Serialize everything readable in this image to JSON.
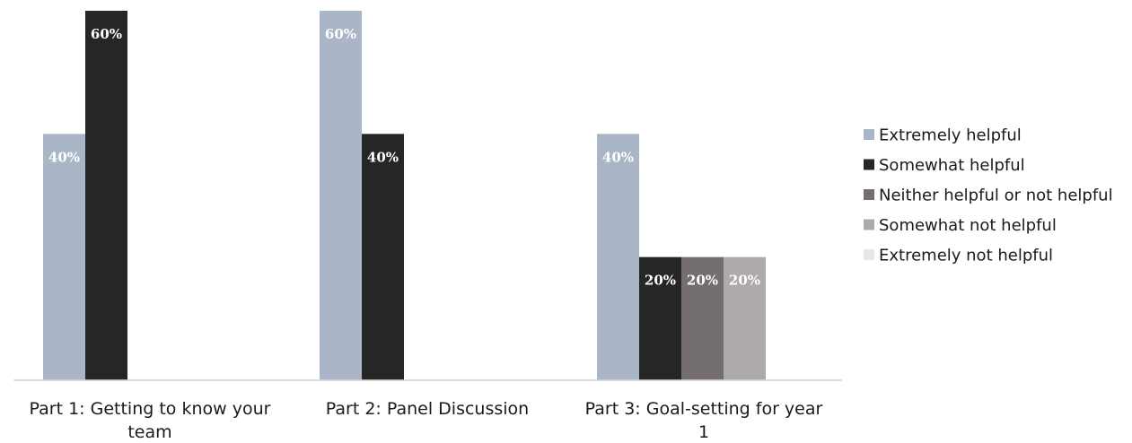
{
  "chart_data": {
    "type": "bar",
    "categories": [
      [
        "Part 1: Getting to know your",
        "team"
      ],
      [
        "Part 2: Panel Discussion"
      ],
      [
        "Part 3: Goal-setting for year",
        "1"
      ]
    ],
    "ylim": [
      0,
      60
    ],
    "grid": false,
    "legend_position": "right",
    "value_format": "percent",
    "series": [
      {
        "name": "Extremely helpful",
        "color": "#aab6c8",
        "label_color": "#ffffff",
        "values": [
          40,
          60,
          40
        ]
      },
      {
        "name": "Somewhat helpful",
        "color": "#262626",
        "label_color": "#ffffff",
        "values": [
          60,
          40,
          20
        ]
      },
      {
        "name": "Neither helpful or not helpful",
        "color": "#746e6e",
        "label_color": "#ffffff",
        "values": [
          0,
          0,
          20
        ]
      },
      {
        "name": "Somewhat not helpful",
        "color": "#aeaaaa",
        "label_color": "#ffffff",
        "values": [
          0,
          0,
          20
        ]
      },
      {
        "name": "Extremely not helpful",
        "color": "#e6e6e6",
        "label_color": "#ffffff",
        "values": [
          0,
          0,
          0
        ]
      }
    ]
  }
}
